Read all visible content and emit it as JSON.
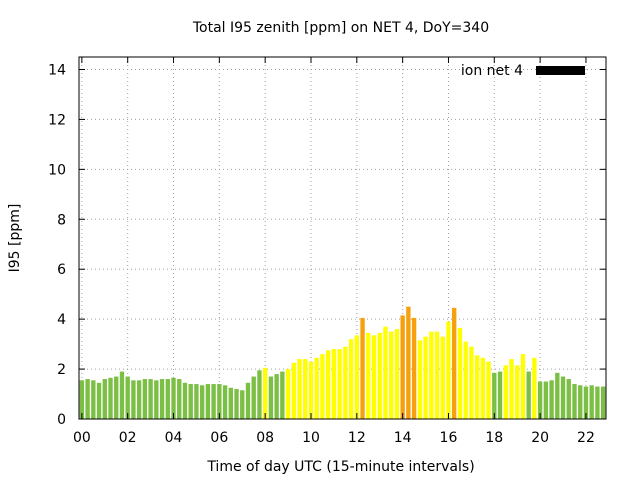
{
  "chart_data": {
    "type": "bar",
    "title": "Total I95 zenith [ppm] on NET 4, DoY=340",
    "xlabel": "Time of day UTC (15-minute intervals)",
    "ylabel": "I95 [ppm]",
    "xlim": [
      0,
      22.75
    ],
    "ylim": [
      0,
      14.5
    ],
    "xticks": [
      0,
      2,
      4,
      6,
      8,
      10,
      12,
      14,
      16,
      18,
      20,
      22
    ],
    "xtick_labels": [
      "00",
      "02",
      "04",
      "06",
      "08",
      "10",
      "12",
      "14",
      "16",
      "18",
      "20",
      "22"
    ],
    "yticks": [
      0,
      2,
      4,
      6,
      8,
      10,
      12,
      14
    ],
    "ytick_labels": [
      "0",
      "2",
      "4",
      "6",
      "8",
      "10",
      "12",
      "14"
    ],
    "grid": true,
    "legend": {
      "label": "ion net 4",
      "color": "#000000",
      "placement": "top-right"
    },
    "colors": {
      "low": "#7bbf44",
      "medium": "#ffff00",
      "high": "#f5a00c"
    },
    "bar_step_hours": 0.25,
    "bar_width_hours": 0.19,
    "series": [
      {
        "name": "ion net 4",
        "x": [
          0.0,
          0.25,
          0.5,
          0.75,
          1.0,
          1.25,
          1.5,
          1.75,
          2.0,
          2.25,
          2.5,
          2.75,
          3.0,
          3.25,
          3.5,
          3.75,
          4.0,
          4.25,
          4.5,
          4.75,
          5.0,
          5.25,
          5.5,
          5.75,
          6.0,
          6.25,
          6.5,
          6.75,
          7.0,
          7.25,
          7.5,
          7.75,
          8.0,
          8.25,
          8.5,
          8.75,
          9.0,
          9.25,
          9.5,
          9.75,
          10.0,
          10.25,
          10.5,
          10.75,
          11.0,
          11.25,
          11.5,
          11.75,
          12.0,
          12.25,
          12.5,
          12.75,
          13.0,
          13.25,
          13.5,
          13.75,
          14.0,
          14.25,
          14.5,
          14.75,
          15.0,
          15.25,
          15.5,
          15.75,
          16.0,
          16.25,
          16.5,
          16.75,
          17.0,
          17.25,
          17.5,
          17.75,
          18.0,
          18.25,
          18.5,
          18.75,
          19.0,
          19.25,
          19.5,
          19.75,
          20.0,
          20.25,
          20.5,
          20.75,
          21.0,
          21.25,
          21.5,
          21.75,
          22.0,
          22.25,
          22.5,
          22.75
        ],
        "values": [
          1.55,
          1.6,
          1.55,
          1.45,
          1.6,
          1.65,
          1.7,
          1.9,
          1.7,
          1.55,
          1.55,
          1.6,
          1.6,
          1.55,
          1.6,
          1.6,
          1.65,
          1.6,
          1.45,
          1.4,
          1.4,
          1.35,
          1.4,
          1.4,
          1.4,
          1.35,
          1.25,
          1.2,
          1.15,
          1.45,
          1.7,
          1.95,
          2.05,
          1.7,
          1.8,
          1.9,
          2.0,
          2.25,
          2.4,
          2.4,
          2.3,
          2.45,
          2.6,
          2.75,
          2.8,
          2.8,
          2.9,
          3.2,
          3.35,
          4.05,
          3.45,
          3.35,
          3.45,
          3.7,
          3.5,
          3.6,
          4.15,
          4.5,
          4.05,
          3.15,
          3.3,
          3.5,
          3.5,
          3.3,
          3.9,
          4.45,
          3.65,
          3.1,
          2.9,
          2.55,
          2.45,
          2.3,
          1.85,
          1.9,
          2.15,
          2.4,
          2.15,
          2.6,
          1.9,
          2.45,
          1.5,
          1.5,
          1.55,
          1.85,
          1.7,
          1.6,
          1.4,
          1.35,
          1.3,
          1.35,
          1.3,
          1.3
        ],
        "levels": [
          "low",
          "low",
          "low",
          "low",
          "low",
          "low",
          "low",
          "low",
          "low",
          "low",
          "low",
          "low",
          "low",
          "low",
          "low",
          "low",
          "low",
          "low",
          "low",
          "low",
          "low",
          "low",
          "low",
          "low",
          "low",
          "low",
          "low",
          "low",
          "low",
          "low",
          "low",
          "low",
          "medium",
          "low",
          "low",
          "low",
          "medium",
          "medium",
          "medium",
          "medium",
          "medium",
          "medium",
          "medium",
          "medium",
          "medium",
          "medium",
          "medium",
          "medium",
          "medium",
          "high",
          "medium",
          "medium",
          "medium",
          "medium",
          "medium",
          "medium",
          "high",
          "high",
          "high",
          "medium",
          "medium",
          "medium",
          "medium",
          "medium",
          "medium",
          "high",
          "medium",
          "medium",
          "medium",
          "medium",
          "medium",
          "medium",
          "low",
          "low",
          "medium",
          "medium",
          "medium",
          "medium",
          "low",
          "medium",
          "low",
          "low",
          "low",
          "low",
          "low",
          "low",
          "low",
          "low",
          "low",
          "low",
          "low",
          "low"
        ]
      }
    ]
  }
}
